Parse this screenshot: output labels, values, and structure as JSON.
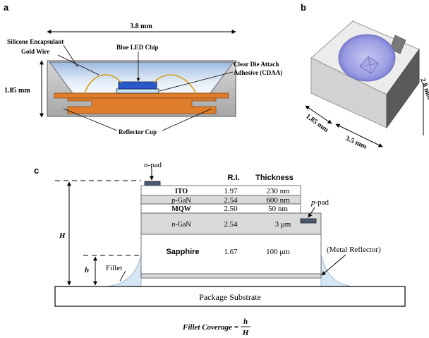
{
  "panel_a": {
    "letter": "a",
    "width_dim": "3.8 mm",
    "height_dim": "1.85 mm",
    "silicone": "Silicone Encapsulant",
    "gold_wire": "Gold Wire",
    "blue_led": "Blue LED Chip",
    "cdaa_line1": "Clear Die Attach",
    "cdaa_line2": "Adhesive (CDAA)",
    "reflector": "Reflector Cup"
  },
  "panel_b": {
    "letter": "b",
    "dim_depth": "1.85 mm",
    "dim_width": "3.5 mm",
    "dim_height": "2.8 mm"
  },
  "panel_c": {
    "letter": "c",
    "n_pad_italic": "n",
    "n_pad_rest": "-pad",
    "p_pad_italic": "p",
    "p_pad_rest": "-pad",
    "col_ri": "R.I.",
    "col_thickness": "Thickness",
    "layers": {
      "ito": {
        "name": "ITO",
        "ri": "1.97",
        "thickness": "230 nm"
      },
      "pgan": {
        "name_italic": "p",
        "name_rest": "-GaN",
        "ri": "2.54",
        "thickness": "600 nm"
      },
      "mqw": {
        "name": "MQW",
        "ri": "2.50",
        "thickness": "50 nm"
      },
      "ngan": {
        "name_italic": "n",
        "name_rest": "-GaN",
        "ri": "2.54",
        "thickness": "3 μm"
      },
      "sapphire": {
        "name": "Sapphire",
        "ri": "1.67",
        "thickness": "100 μm"
      }
    },
    "big_h": "H",
    "small_h": "h",
    "fillet": "Fillet",
    "metal_reflector": "(Metal Reflector)",
    "substrate": "Package Substrate",
    "formula_lhs": "Fillet Coverage =",
    "formula_num": "h",
    "formula_den": "H"
  },
  "colors": {
    "orange": "#e07d2c",
    "blue_chip": "#2a58c8",
    "encapsulant": "#bcd3ee",
    "cup_gray": "#cfcfcf",
    "layer_gray": "#d9d9d9",
    "pad_dark": "#4a5a6e",
    "fillet_blue": "#d6e6f5"
  }
}
